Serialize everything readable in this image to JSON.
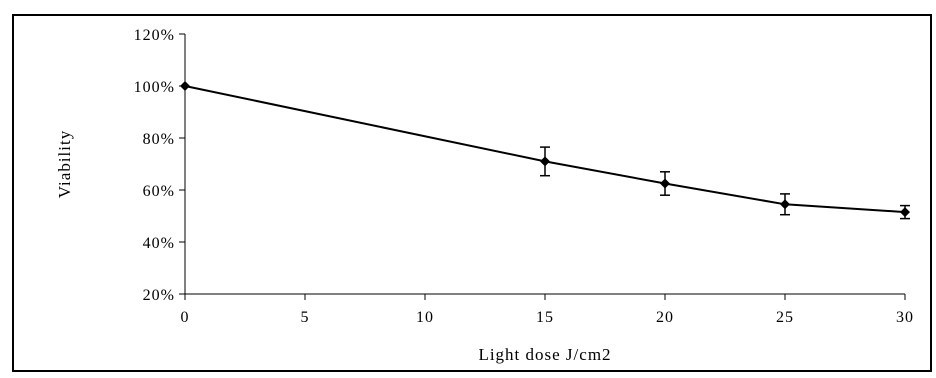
{
  "chart_data": {
    "type": "line",
    "title": "",
    "xlabel": "Light dose J/cm2",
    "ylabel": "Viability",
    "x": [
      0,
      15,
      20,
      25,
      30
    ],
    "series": [
      {
        "values": [
          100,
          71,
          62.5,
          54.5,
          51.5
        ],
        "error": [
          0,
          5.5,
          4.5,
          4,
          2.5
        ]
      }
    ],
    "xlim": [
      0,
      30
    ],
    "ylim": [
      20,
      120
    ],
    "xticks": [
      0,
      5,
      10,
      15,
      20,
      25,
      30
    ],
    "yticks": [
      20,
      40,
      60,
      80,
      100,
      120
    ],
    "ytick_labels": [
      "20%",
      "40%",
      "60%",
      "80%",
      "100%",
      "120%"
    ],
    "xtick_labels": [
      "0",
      "5",
      "10",
      "15",
      "20",
      "25",
      "30"
    ],
    "grid": false,
    "legend": "none",
    "line_color": "#000000"
  }
}
